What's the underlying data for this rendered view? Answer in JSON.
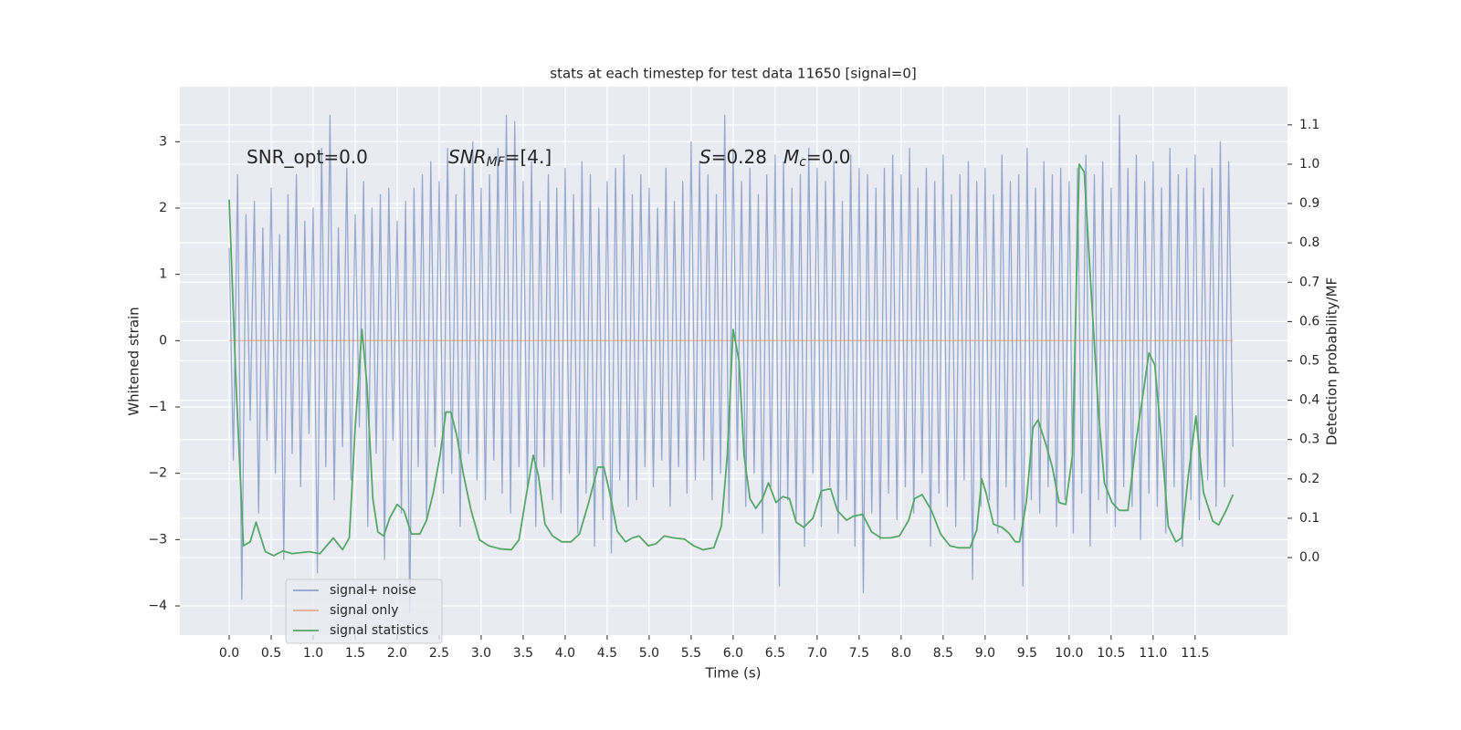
{
  "chart_data": {
    "type": "line",
    "title": "stats at each timestep for test data 11650 [signal=0]",
    "x_label": "Time (s)",
    "y_label": "Whitened strain",
    "y2_label": "Detection probability/MF",
    "annotations": [
      {
        "base": "SNR_opt=0.0"
      },
      {
        "base": "SNR",
        "sub": "MF",
        "rest": "=[4.]"
      },
      {
        "base": "S",
        "rest": "=0.28"
      },
      {
        "base": "M",
        "sub": "c",
        "rest": "=0.0"
      }
    ],
    "grid": true,
    "legend": "lower left",
    "xlim": [
      -0.587,
      12.6
    ],
    "ylim": [
      -4.44,
      3.83
    ],
    "y2lim": [
      -0.197,
      1.197
    ],
    "xticks": [
      {
        "value": 0,
        "label": "0.0"
      },
      {
        "value": 0.5,
        "label": "0.5"
      },
      {
        "value": 1,
        "label": "1.0"
      },
      {
        "value": 1.5,
        "label": "1.5"
      },
      {
        "value": 2,
        "label": "2.0"
      },
      {
        "value": 2.5,
        "label": "2.5"
      },
      {
        "value": 3,
        "label": "3.0"
      },
      {
        "value": 3.5,
        "label": "3.5"
      },
      {
        "value": 4,
        "label": "4.0"
      },
      {
        "value": 4.5,
        "label": "4.5"
      },
      {
        "value": 5,
        "label": "5.0"
      },
      {
        "value": 5.5,
        "label": "5.5"
      },
      {
        "value": 6,
        "label": "6.0"
      },
      {
        "value": 6.5,
        "label": "6.5"
      },
      {
        "value": 7,
        "label": "7.0"
      },
      {
        "value": 7.5,
        "label": "7.5"
      },
      {
        "value": 8,
        "label": "8.0"
      },
      {
        "value": 8.5,
        "label": "8.5"
      },
      {
        "value": 9,
        "label": "9.0"
      },
      {
        "value": 9.5,
        "label": "9.5"
      },
      {
        "value": 10,
        "label": "10.0"
      },
      {
        "value": 10.5,
        "label": "10.5"
      },
      {
        "value": 11,
        "label": "11.0"
      },
      {
        "value": 11.5,
        "label": "11.5"
      }
    ],
    "yticks": [
      {
        "value": -4,
        "label": "−4"
      },
      {
        "value": -3,
        "label": "−3"
      },
      {
        "value": -2,
        "label": "−2"
      },
      {
        "value": -1,
        "label": "−1"
      },
      0,
      1,
      2,
      3
    ],
    "y2ticks": [
      {
        "value": 0,
        "label": "0.0"
      },
      {
        "value": 0.1,
        "label": "0.1"
      },
      {
        "value": 0.2,
        "label": "0.2"
      },
      {
        "value": 0.3,
        "label": "0.3"
      },
      {
        "value": 0.4,
        "label": "0.4"
      },
      {
        "value": 0.5,
        "label": "0.5"
      },
      {
        "value": 0.6,
        "label": "0.6"
      },
      {
        "value": 0.7,
        "label": "0.7"
      },
      {
        "value": 0.8,
        "label": "0.8"
      },
      {
        "value": 0.9,
        "label": "0.9"
      },
      {
        "value": 1,
        "label": "1.0"
      },
      {
        "value": 1.1,
        "label": "1.1"
      }
    ],
    "series": [
      {
        "name": "signal+ noise",
        "color": "#4c72b0",
        "x": [
          0,
          0.05,
          0.1,
          0.15,
          0.2,
          0.25,
          0.3,
          0.35,
          0.4,
          0.45,
          0.5,
          0.55,
          0.6,
          0.65,
          0.7,
          0.75,
          0.8,
          0.85,
          0.9,
          0.95,
          1,
          1.05,
          1.1,
          1.15,
          1.2,
          1.25,
          1.3,
          1.35,
          1.4,
          1.45,
          1.5,
          1.55,
          1.6,
          1.65,
          1.7,
          1.75,
          1.8,
          1.85,
          1.9,
          1.95,
          2,
          2.05,
          2.1,
          2.15,
          2.2,
          2.25,
          2.3,
          2.35,
          2.4,
          2.45,
          2.5,
          2.55,
          2.6,
          2.65,
          2.7,
          2.75,
          2.8,
          2.85,
          2.9,
          2.95,
          3,
          3.05,
          3.1,
          3.15,
          3.2,
          3.25,
          3.3,
          3.35,
          3.4,
          3.45,
          3.5,
          3.55,
          3.6,
          3.65,
          3.7,
          3.75,
          3.8,
          3.85,
          3.9,
          3.95,
          4,
          4.05,
          4.1,
          4.15,
          4.2,
          4.25,
          4.3,
          4.35,
          4.4,
          4.45,
          4.5,
          4.55,
          4.6,
          4.65,
          4.7,
          4.75,
          4.8,
          4.85,
          4.9,
          4.95,
          5,
          5.05,
          5.1,
          5.15,
          5.2,
          5.25,
          5.3,
          5.35,
          5.4,
          5.45,
          5.5,
          5.55,
          5.6,
          5.65,
          5.7,
          5.75,
          5.8,
          5.85,
          5.9,
          5.95,
          6,
          6.05,
          6.1,
          6.15,
          6.2,
          6.25,
          6.3,
          6.35,
          6.4,
          6.45,
          6.5,
          6.55,
          6.6,
          6.65,
          6.7,
          6.75,
          6.8,
          6.85,
          6.9,
          6.95,
          7,
          7.05,
          7.1,
          7.15,
          7.2,
          7.25,
          7.3,
          7.35,
          7.4,
          7.45,
          7.5,
          7.55,
          7.6,
          7.65,
          7.7,
          7.75,
          7.8,
          7.85,
          7.9,
          7.95,
          8,
          8.05,
          8.1,
          8.15,
          8.2,
          8.25,
          8.3,
          8.35,
          8.4,
          8.45,
          8.5,
          8.55,
          8.6,
          8.65,
          8.7,
          8.75,
          8.8,
          8.85,
          8.9,
          8.95,
          9,
          9.05,
          9.1,
          9.15,
          9.2,
          9.25,
          9.3,
          9.35,
          9.4,
          9.45,
          9.5,
          9.55,
          9.6,
          9.65,
          9.7,
          9.75,
          9.8,
          9.85,
          9.9,
          9.95,
          10,
          10.05,
          10.1,
          10.15,
          10.2,
          10.25,
          10.3,
          10.35,
          10.4,
          10.45,
          10.5,
          10.55,
          10.6,
          10.65,
          10.7,
          10.75,
          10.8,
          10.85,
          10.9,
          10.95,
          11,
          11.05,
          11.1,
          11.15,
          11.2,
          11.25,
          11.3,
          11.35,
          11.4,
          11.45,
          11.5,
          11.55,
          11.6,
          11.65,
          11.7,
          11.75,
          11.8,
          11.85,
          11.9,
          11.95
        ],
        "values": [
          1.4,
          -1.8,
          2.5,
          -3.9,
          1.9,
          -1.2,
          2.1,
          -2.6,
          1.7,
          -1.5,
          2.3,
          -2.0,
          1.6,
          -3.3,
          2.2,
          -1.7,
          2.5,
          -2.2,
          1.8,
          -1.4,
          2.0,
          -3.5,
          2.9,
          -1.9,
          3.4,
          -2.4,
          1.7,
          -1.6,
          2.6,
          -2.1,
          1.9,
          -1.3,
          2.4,
          -2.8,
          2.0,
          -1.7,
          2.2,
          -3.3,
          2.3,
          -1.5,
          1.8,
          -2.6,
          2.1,
          -4.1,
          2.3,
          -1.9,
          2.5,
          -2.7,
          2.7,
          -1.6,
          2.4,
          -2.3,
          2.9,
          -2.0,
          2.2,
          -2.8,
          2.6,
          -1.7,
          3.0,
          -2.1,
          2.3,
          -2.4,
          2.5,
          -1.8,
          2.9,
          -2.3,
          3.4,
          -2.6,
          3.3,
          -1.9,
          2.4,
          -2.2,
          2.7,
          -2.8,
          2.1,
          -1.9,
          2.5,
          -2.4,
          2.3,
          -2.6,
          2.6,
          -2.0,
          2.2,
          -2.9,
          2.7,
          -2.3,
          2.5,
          -3.1,
          2.0,
          -2.7,
          2.4,
          -3.2,
          2.6,
          -2.1,
          2.8,
          -2.5,
          2.2,
          -2.4,
          2.5,
          -1.9,
          2.3,
          -2.2,
          2.0,
          -1.8,
          2.6,
          -2.5,
          2.1,
          -1.9,
          2.4,
          -2.3,
          3.0,
          -2.1,
          2.7,
          -1.8,
          2.5,
          -2.4,
          2.2,
          -2.0,
          3.4,
          -2.6,
          2.9,
          -1.8,
          2.4,
          -2.5,
          2.6,
          -2.0,
          2.2,
          -2.9,
          2.5,
          -2.2,
          2.8,
          -3.7,
          2.7,
          -2.4,
          2.3,
          -2.7,
          2.5,
          -3.1,
          2.9,
          -2.0,
          2.6,
          -2.8,
          2.4,
          -2.2,
          2.7,
          -2.9,
          2.1,
          -2.4,
          2.8,
          -3.1,
          2.6,
          -3.8,
          2.5,
          -2.6,
          2.3,
          -3.0,
          2.6,
          -2.3,
          2.8,
          -2.7,
          2.5,
          -2.2,
          2.9,
          -2.6,
          2.3,
          -2.0,
          2.6,
          -3.1,
          2.4,
          -2.3,
          2.8,
          -2.5,
          2.2,
          -2.8,
          2.5,
          -2.1,
          2.7,
          -3.6,
          2.4,
          -2.5,
          2.6,
          -2.4,
          2.2,
          -2.9,
          2.8,
          -2.2,
          2.4,
          -2.7,
          2.5,
          -3.7,
          2.9,
          -2.4,
          2.3,
          -2.6,
          2.7,
          -2.2,
          2.5,
          -2.8,
          2.6,
          -2.4,
          2.4,
          -2.9,
          2.6,
          -2.3,
          2.8,
          -3.1,
          2.5,
          -2.4,
          2.7,
          -2.6,
          2.3,
          -2.8,
          3.4,
          -2.2,
          2.6,
          -2.5,
          2.8,
          -3.0,
          2.4,
          -2.3,
          2.7,
          -2.5,
          2.3,
          -2.9,
          2.9,
          -2.2,
          2.5,
          -3.1,
          2.6,
          -2.4,
          2.8,
          -2.7,
          2.3,
          -2.1,
          2.6,
          -2.5,
          3.0,
          -2.2,
          2.7,
          -1.6
        ]
      },
      {
        "name": "signal only",
        "color": "#dd8452",
        "x": [
          0,
          11.95
        ],
        "values": [
          0,
          0
        ]
      },
      {
        "name": "signal statistics",
        "color": "#55a868",
        "axis": "y2",
        "x": [
          0,
          0.08,
          0.17,
          0.25,
          0.32,
          0.43,
          0.53,
          0.64,
          0.75,
          0.95,
          1.08,
          1.24,
          1.35,
          1.43,
          1.5,
          1.58,
          1.64,
          1.71,
          1.77,
          1.84,
          1.91,
          2,
          2.08,
          2.17,
          2.27,
          2.35,
          2.43,
          2.51,
          2.58,
          2.64,
          2.71,
          2.79,
          2.88,
          2.98,
          3.09,
          3.23,
          3.36,
          3.45,
          3.53,
          3.62,
          3.68,
          3.76,
          3.85,
          3.96,
          4.07,
          4.17,
          4.28,
          4.39,
          4.46,
          4.53,
          4.62,
          4.72,
          4.8,
          4.88,
          4.99,
          5.08,
          5.18,
          5.29,
          5.42,
          5.53,
          5.64,
          5.77,
          5.86,
          5.93,
          6,
          6.07,
          6.13,
          6.2,
          6.27,
          6.35,
          6.42,
          6.51,
          6.59,
          6.67,
          6.75,
          6.84,
          6.95,
          7.05,
          7.16,
          7.24,
          7.35,
          7.43,
          7.54,
          7.65,
          7.76,
          7.87,
          7.98,
          8.09,
          8.16,
          8.25,
          8.36,
          8.47,
          8.58,
          8.68,
          8.82,
          8.9,
          8.96,
          9.01,
          9.1,
          9.2,
          9.28,
          9.36,
          9.41,
          9.49,
          9.57,
          9.63,
          9.72,
          9.8,
          9.88,
          9.96,
          10.04,
          10.12,
          10.18,
          10.27,
          10.35,
          10.42,
          10.51,
          10.6,
          10.7,
          10.8,
          10.89,
          10.95,
          11.02,
          11.09,
          11.18,
          11.27,
          11.34,
          11.42,
          11.51,
          11.6,
          11.71,
          11.78,
          11.87,
          11.95
        ],
        "values": [
          0.91,
          0.45,
          0.03,
          0.04,
          0.09,
          0.015,
          0.005,
          0.017,
          0.01,
          0.015,
          0.01,
          0.05,
          0.02,
          0.05,
          0.33,
          0.58,
          0.44,
          0.15,
          0.065,
          0.055,
          0.1,
          0.135,
          0.12,
          0.06,
          0.06,
          0.095,
          0.165,
          0.26,
          0.37,
          0.37,
          0.31,
          0.21,
          0.12,
          0.045,
          0.03,
          0.022,
          0.02,
          0.045,
          0.15,
          0.26,
          0.21,
          0.085,
          0.055,
          0.04,
          0.04,
          0.06,
          0.14,
          0.23,
          0.23,
          0.165,
          0.067,
          0.04,
          0.05,
          0.055,
          0.03,
          0.035,
          0.055,
          0.05,
          0.047,
          0.03,
          0.02,
          0.025,
          0.08,
          0.26,
          0.58,
          0.5,
          0.26,
          0.15,
          0.125,
          0.15,
          0.19,
          0.14,
          0.155,
          0.15,
          0.09,
          0.077,
          0.1,
          0.17,
          0.175,
          0.12,
          0.095,
          0.105,
          0.11,
          0.065,
          0.05,
          0.05,
          0.055,
          0.095,
          0.15,
          0.16,
          0.12,
          0.06,
          0.03,
          0.025,
          0.025,
          0.07,
          0.2,
          0.165,
          0.085,
          0.077,
          0.063,
          0.04,
          0.04,
          0.14,
          0.33,
          0.35,
          0.29,
          0.23,
          0.14,
          0.135,
          0.26,
          1.0,
          0.98,
          0.65,
          0.37,
          0.19,
          0.14,
          0.12,
          0.12,
          0.3,
          0.43,
          0.52,
          0.49,
          0.32,
          0.08,
          0.04,
          0.05,
          0.21,
          0.36,
          0.165,
          0.093,
          0.083,
          0.12,
          0.16
        ]
      }
    ]
  }
}
